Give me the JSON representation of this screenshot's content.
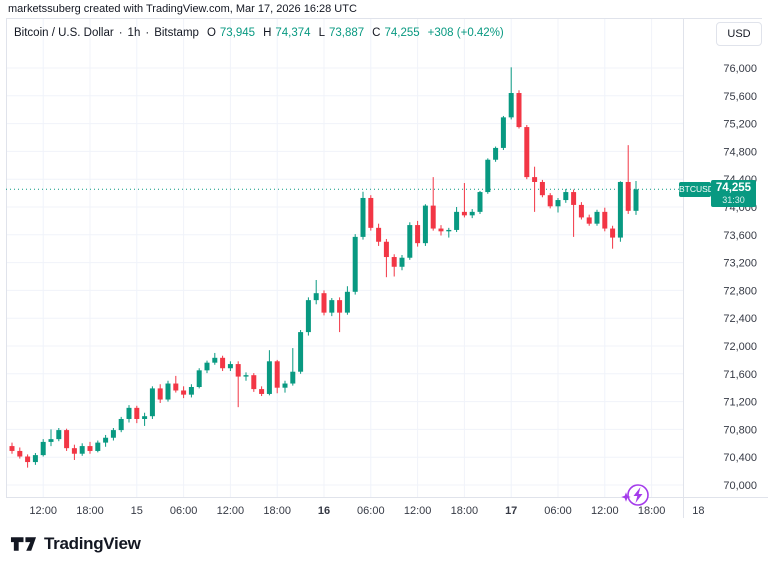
{
  "watermark": "marketssuberg created with TradingView.com, Mar 17, 2026 16:28 UTC",
  "legend": {
    "symbol_title": "Bitcoin / U.S. Dollar",
    "separator": "·",
    "interval": "1h",
    "exchange": "Bitstamp",
    "o_label": "O",
    "o_value": "73,945",
    "h_label": "H",
    "h_value": "74,374",
    "l_label": "L",
    "l_value": "73,887",
    "c_label": "C",
    "c_value": "74,255",
    "change": "+308 (+0.42%)"
  },
  "price_scale": {
    "currency": "USD",
    "ticks": [
      "76,000",
      "75,600",
      "75,200",
      "74,800",
      "74,400",
      "74,000",
      "73,600",
      "73,200",
      "72,800",
      "72,400",
      "72,000",
      "71,600",
      "71,200",
      "70,800",
      "70,400",
      "70,000"
    ]
  },
  "price_badge": {
    "symbol": "BTCUSD",
    "price": "74,255",
    "countdown": "31:30"
  },
  "footer": {
    "logo_text": "TradingView"
  },
  "colors": {
    "up": "#089981",
    "down": "#F23645",
    "grid": "#F0F3FA",
    "border": "#E0E3EB",
    "axis_text": "#363A45",
    "text": "#131722",
    "event_purple": "#A43BEB"
  },
  "chart_data": {
    "type": "candlestick",
    "title": "Bitcoin / U.S. Dollar · 1h · Bitstamp",
    "symbol": "BTCUSD",
    "interval": "1h",
    "exchange": "Bitstamp",
    "start": "Mar 14 08:00 UTC",
    "end": "Mar 17 16:00 UTC",
    "price_axis": {
      "min": 70000,
      "max": 76000,
      "tick_step": 400
    },
    "last_price": 74255,
    "grid": true,
    "time_ticks": [
      {
        "label": "12:00",
        "index": 4,
        "bold": false
      },
      {
        "label": "18:00",
        "index": 10,
        "bold": false
      },
      {
        "label": "15",
        "index": 16,
        "bold": false
      },
      {
        "label": "06:00",
        "index": 22,
        "bold": false
      },
      {
        "label": "12:00",
        "index": 28,
        "bold": false
      },
      {
        "label": "18:00",
        "index": 34,
        "bold": false
      },
      {
        "label": "16",
        "index": 40,
        "bold": true
      },
      {
        "label": "06:00",
        "index": 46,
        "bold": false
      },
      {
        "label": "12:00",
        "index": 52,
        "bold": false
      },
      {
        "label": "18:00",
        "index": 58,
        "bold": false
      },
      {
        "label": "17",
        "index": 64,
        "bold": true
      },
      {
        "label": "06:00",
        "index": 70,
        "bold": false
      },
      {
        "label": "12:00",
        "index": 76,
        "bold": false
      },
      {
        "label": "18:00",
        "index": 82,
        "bold": false
      },
      {
        "label": "18",
        "index": 88,
        "bold": false
      }
    ],
    "candles": [
      [
        70560,
        70610,
        70450,
        70490
      ],
      [
        70490,
        70540,
        70380,
        70410
      ],
      [
        70410,
        70440,
        70250,
        70330
      ],
      [
        70330,
        70460,
        70290,
        70430
      ],
      [
        70430,
        70660,
        70410,
        70620
      ],
      [
        70620,
        70800,
        70560,
        70660
      ],
      [
        70660,
        70820,
        70630,
        70790
      ],
      [
        70790,
        70810,
        70490,
        70530
      ],
      [
        70530,
        70580,
        70360,
        70450
      ],
      [
        70450,
        70600,
        70420,
        70560
      ],
      [
        70560,
        70620,
        70450,
        70490
      ],
      [
        70490,
        70640,
        70470,
        70610
      ],
      [
        70610,
        70720,
        70550,
        70680
      ],
      [
        70680,
        70820,
        70640,
        70790
      ],
      [
        70790,
        70980,
        70760,
        70950
      ],
      [
        70950,
        71150,
        70900,
        71110
      ],
      [
        71110,
        71140,
        70890,
        70950
      ],
      [
        70950,
        71040,
        70850,
        70990
      ],
      [
        70990,
        71420,
        70950,
        71390
      ],
      [
        71390,
        71450,
        71180,
        71230
      ],
      [
        71230,
        71500,
        71200,
        71460
      ],
      [
        71460,
        71570,
        71330,
        71360
      ],
      [
        71360,
        71420,
        71250,
        71300
      ],
      [
        71300,
        71450,
        71260,
        71410
      ],
      [
        71410,
        71680,
        71390,
        71650
      ],
      [
        71650,
        71790,
        71610,
        71760
      ],
      [
        71760,
        71900,
        71730,
        71830
      ],
      [
        71830,
        71860,
        71640,
        71680
      ],
      [
        71680,
        71780,
        71640,
        71740
      ],
      [
        71740,
        71780,
        71120,
        71560
      ],
      [
        71560,
        71620,
        71500,
        71580
      ],
      [
        71580,
        71610,
        71340,
        71380
      ],
      [
        71380,
        71420,
        71280,
        71310
      ],
      [
        71310,
        71940,
        71290,
        71780
      ],
      [
        71780,
        71800,
        71320,
        71400
      ],
      [
        71400,
        71500,
        71330,
        71460
      ],
      [
        71460,
        71970,
        71430,
        71630
      ],
      [
        71630,
        72230,
        71600,
        72200
      ],
      [
        72200,
        72700,
        72150,
        72660
      ],
      [
        72660,
        72950,
        72600,
        72760
      ],
      [
        72760,
        72800,
        72440,
        72480
      ],
      [
        72480,
        72690,
        72430,
        72660
      ],
      [
        72660,
        72700,
        72200,
        72480
      ],
      [
        72480,
        72860,
        72450,
        72780
      ],
      [
        72780,
        73610,
        72740,
        73570
      ],
      [
        73570,
        74220,
        73530,
        74130
      ],
      [
        74130,
        74170,
        73660,
        73700
      ],
      [
        73700,
        73760,
        73440,
        73500
      ],
      [
        73500,
        73540,
        72990,
        73280
      ],
      [
        73280,
        73320,
        73000,
        73140
      ],
      [
        73140,
        73310,
        73090,
        73270
      ],
      [
        73270,
        73780,
        73240,
        73740
      ],
      [
        73740,
        73800,
        73430,
        73480
      ],
      [
        73480,
        74040,
        73440,
        74020
      ],
      [
        74020,
        74430,
        73660,
        73690
      ],
      [
        73690,
        73740,
        73590,
        73650
      ],
      [
        73650,
        73700,
        73560,
        73670
      ],
      [
        73670,
        74000,
        73640,
        73930
      ],
      [
        73930,
        74345,
        73850,
        73880
      ],
      [
        73880,
        73970,
        73840,
        73930
      ],
      [
        73930,
        74230,
        73900,
        74215
      ],
      [
        74215,
        74700,
        74190,
        74680
      ],
      [
        74680,
        74870,
        74650,
        74850
      ],
      [
        74850,
        75310,
        74820,
        75290
      ],
      [
        75290,
        76010,
        75260,
        75640
      ],
      [
        75640,
        75680,
        75130,
        75150
      ],
      [
        75150,
        75180,
        74400,
        74430
      ],
      [
        74430,
        74580,
        73930,
        74360
      ],
      [
        74360,
        74390,
        74140,
        74170
      ],
      [
        74170,
        74200,
        73980,
        74010
      ],
      [
        74010,
        74130,
        73920,
        74100
      ],
      [
        74100,
        74260,
        74060,
        74215
      ],
      [
        74215,
        74250,
        73570,
        74030
      ],
      [
        74030,
        74070,
        73820,
        73850
      ],
      [
        73850,
        73890,
        73730,
        73760
      ],
      [
        73760,
        73960,
        73730,
        73930
      ],
      [
        73930,
        73990,
        73650,
        73690
      ],
      [
        73690,
        73730,
        73400,
        73560
      ],
      [
        73560,
        74370,
        73500,
        74360
      ],
      [
        74360,
        74890,
        73900,
        73945
      ],
      [
        73945,
        74374,
        73887,
        74255
      ]
    ]
  }
}
